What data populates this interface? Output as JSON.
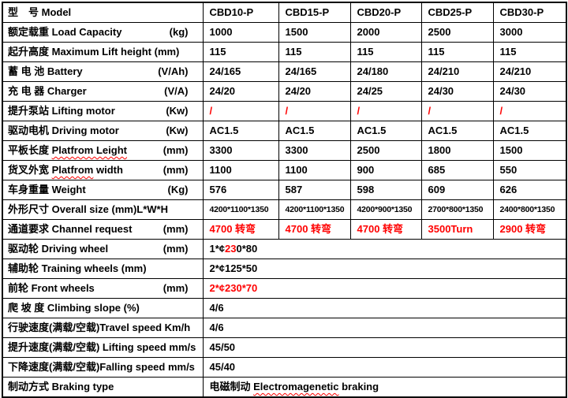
{
  "colors": {
    "text": "#000000",
    "accent_red": "#ff0000",
    "border": "#000000",
    "background": "#ffffff"
  },
  "table": {
    "rows": [
      {
        "label": "型　号 Model",
        "unit": "",
        "values": [
          "CBD10-P",
          "CBD15-P",
          "CBD20-P",
          "CBD25-P",
          "CBD30-P"
        ]
      },
      {
        "label": "额定载重 Load Capacity",
        "unit": "(kg)",
        "values": [
          "1000",
          "1500",
          "2000",
          "2500",
          "3000"
        ]
      },
      {
        "label": "起升高度 Maximum Lift height (mm)",
        "unit": "",
        "values": [
          "115",
          "115",
          "115",
          "115",
          "115"
        ]
      },
      {
        "label": "蓄 电 池 Battery",
        "unit": "(V/Ah)",
        "values": [
          "24/165",
          "24/165",
          "24/180",
          "24/210",
          "24/210"
        ]
      },
      {
        "label": "充 电 器 Charger",
        "unit": "(V/A)",
        "values": [
          "24/20",
          "24/20",
          "24/25",
          "24/30",
          "24/30"
        ]
      },
      {
        "label": "提升泵站 Lifting motor",
        "unit": "(Kw)",
        "values": [
          "/",
          "/",
          "/",
          "/",
          "/"
        ],
        "red": true
      },
      {
        "label": "驱动电机 Driving motor",
        "unit": "(Kw)",
        "values": [
          "AC1.5",
          "AC1.5",
          "AC1.5",
          "AC1.5",
          "AC1.5"
        ]
      },
      {
        "label": "平板长度 Platfrom Leight",
        "unit": "(mm)",
        "label_wavy": "Platfrom Leight",
        "values": [
          "3300",
          "3300",
          "2500",
          "1800",
          "1500"
        ]
      },
      {
        "label": "货叉外宽 Platfrom width",
        "unit": "(mm)",
        "label_wavy": "Platfrom",
        "values": [
          "1100",
          "1100",
          "900",
          "685",
          "550"
        ]
      },
      {
        "label": "车身重量 Weight",
        "unit": "(Kg)",
        "values": [
          "576",
          "587",
          "598",
          "609",
          "626"
        ]
      },
      {
        "label": "外形尺寸 Overall size (mm)L*W*H",
        "unit": "",
        "small": true,
        "values": [
          "4200*1100*1350",
          "4200*1100*1350",
          "4200*900*1350",
          "2700*800*1350",
          "2400*800*1350"
        ]
      },
      {
        "label": "通道要求 Channel request",
        "unit": "(mm)",
        "red": true,
        "values": [
          "4700 转弯",
          "4700 转弯",
          "4700 转弯",
          "3500Turn",
          "2900 转弯"
        ]
      },
      {
        "label": "驱动轮  Driving wheel",
        "unit": "(mm)",
        "span": true,
        "value": "1*¢230*80",
        "value_red_part": "23"
      },
      {
        "label": "辅助轮 Training wheels (mm)",
        "unit": "",
        "span": true,
        "value": "2*¢125*50"
      },
      {
        "label": "前轮 Front wheels",
        "unit": "(mm)",
        "span": true,
        "value": "2*¢230*70",
        "red": true
      },
      {
        "label": "爬 坡 度 Climbing slope (%)",
        "unit": "",
        "span": true,
        "value": "4/6"
      },
      {
        "label": "行驶速度(满载/空载)Travel speed  Km/h",
        "unit": "",
        "span": true,
        "value": "4/6"
      },
      {
        "label": "提升速度(满载/空载) Lifting speed mm/s",
        "unit": "",
        "span": true,
        "value": "45/50"
      },
      {
        "label": "下降速度(满载/空载)Falling speed mm/s",
        "unit": "",
        "span": true,
        "value": "45/40"
      },
      {
        "label": "制动方式 Braking type",
        "unit": "",
        "span": true,
        "value": "电磁制动 Electromagenetic braking",
        "value_wavy": "Electromagenetic"
      }
    ]
  }
}
